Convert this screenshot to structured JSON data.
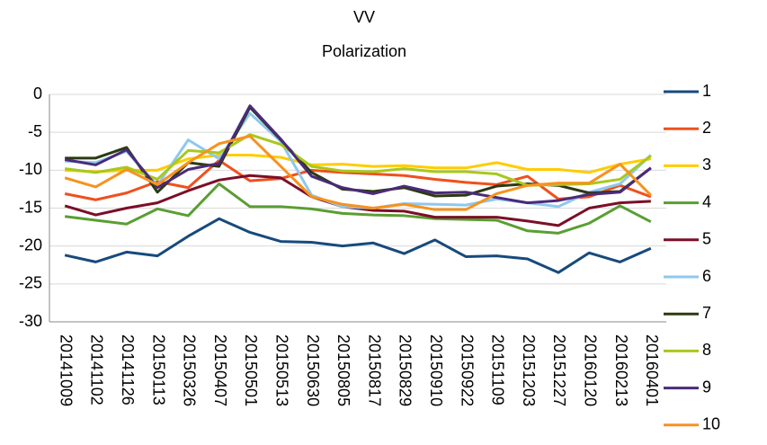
{
  "chart_data": {
    "type": "line",
    "title": [
      "VV",
      "Polarization"
    ],
    "categories": [
      "20141009",
      "20141102",
      "20141126",
      "20150113",
      "20150326",
      "20150407",
      "20150501",
      "20150513",
      "20150630",
      "20150805",
      "20150817",
      "20150829",
      "20150910",
      "20150922",
      "20151109",
      "20151203",
      "20151227",
      "20160120",
      "20160213",
      "20160401"
    ],
    "ylim": [
      -30,
      0
    ],
    "yticks": [
      -30,
      -25,
      -20,
      -15,
      -10,
      -5,
      0
    ],
    "grid": true,
    "legend": "right",
    "series": [
      {
        "name": "1",
        "color": "#174a7c",
        "values": [
          -21.2,
          -22.1,
          -20.8,
          -21.3,
          -18.7,
          -16.4,
          -18.2,
          -19.4,
          -19.5,
          -20.0,
          -19.6,
          -21.0,
          -19.2,
          -21.4,
          -21.3,
          -21.7,
          -23.5,
          -20.9,
          -22.1,
          -20.3
        ]
      },
      {
        "name": "2",
        "color": "#f0501e",
        "values": [
          -13.1,
          -13.9,
          -13.0,
          -11.5,
          -12.3,
          -8.7,
          -11.4,
          -11.1,
          -10.0,
          -10.3,
          -10.5,
          -10.7,
          -11.2,
          -11.6,
          -11.9,
          -10.8,
          -13.8,
          -13.5,
          -12.0,
          -13.5
        ]
      },
      {
        "name": "3",
        "color": "#ffcc00",
        "values": [
          -10.0,
          -10.2,
          -10.0,
          -10.0,
          -8.5,
          -8.0,
          -8.0,
          -8.3,
          -9.3,
          -9.2,
          -9.5,
          -9.4,
          -9.7,
          -9.7,
          -9.0,
          -9.9,
          -9.9,
          -10.3,
          -9.2,
          -8.5
        ]
      },
      {
        "name": "4",
        "color": "#5a9e32",
        "values": [
          -16.1,
          -16.6,
          -17.1,
          -15.1,
          -16.0,
          -11.8,
          -14.8,
          -14.8,
          -15.1,
          -15.7,
          -15.9,
          -16.0,
          -16.4,
          -16.5,
          -16.6,
          -18.0,
          -18.3,
          -17.0,
          -14.7,
          -16.8
        ]
      },
      {
        "name": "5",
        "color": "#7b0f27",
        "values": [
          -14.7,
          -15.9,
          -15.0,
          -14.3,
          -12.7,
          -11.3,
          -10.7,
          -11.0,
          -13.5,
          -14.8,
          -15.3,
          -15.4,
          -16.2,
          -16.2,
          -16.2,
          -16.7,
          -17.3,
          -15.0,
          -14.3,
          -14.1
        ]
      },
      {
        "name": "6",
        "color": "#8ec8f0",
        "values": [
          -8.8,
          -9.0,
          -7.5,
          -12.0,
          -6.0,
          -8.5,
          -2.5,
          -6.2,
          -13.3,
          -14.8,
          -15.0,
          -14.4,
          -14.5,
          -14.6,
          -13.8,
          -14.3,
          -14.8,
          -12.9,
          -11.8,
          -8.0
        ]
      },
      {
        "name": "7",
        "color": "#2b3a12",
        "values": [
          -8.4,
          -8.4,
          -7.0,
          -12.9,
          -9.0,
          -9.5,
          -1.7,
          -6.0,
          -10.3,
          -12.5,
          -12.8,
          -12.3,
          -13.4,
          -13.3,
          -12.1,
          -11.8,
          -12.0,
          -13.0,
          -12.8,
          -9.7
        ]
      },
      {
        "name": "8",
        "color": "#a8c81c",
        "values": [
          -9.8,
          -10.3,
          -9.6,
          -11.2,
          -7.4,
          -7.7,
          -5.3,
          -6.6,
          -9.5,
          -10.1,
          -10.2,
          -9.8,
          -10.2,
          -10.2,
          -10.5,
          -12.0,
          -11.9,
          -11.8,
          -11.2,
          -8.1
        ]
      },
      {
        "name": "9",
        "color": "#4b2a7a",
        "values": [
          -8.6,
          -9.3,
          -7.3,
          -12.3,
          -9.9,
          -9.1,
          -1.5,
          -5.9,
          -10.8,
          -12.3,
          -13.1,
          -12.1,
          -13.0,
          -12.9,
          -13.6,
          -14.3,
          -14.0,
          -13.2,
          -12.9,
          -9.7
        ]
      },
      {
        "name": "10",
        "color": "#f7921e",
        "values": [
          -11.0,
          -12.2,
          -9.9,
          -11.9,
          -9.0,
          -6.5,
          -5.5,
          -9.5,
          -13.5,
          -14.5,
          -15.0,
          -14.5,
          -15.2,
          -15.2,
          -13.1,
          -12.0,
          -11.7,
          -11.7,
          -9.2,
          -13.3
        ]
      }
    ]
  }
}
